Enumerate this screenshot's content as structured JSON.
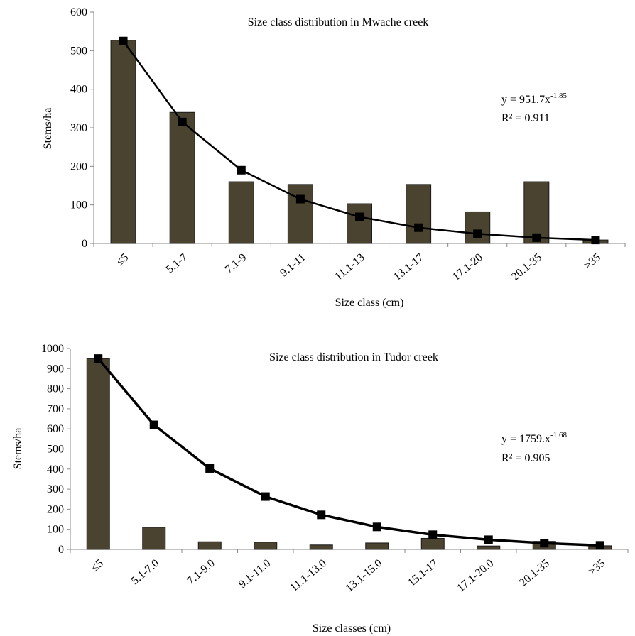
{
  "chart_data": [
    {
      "type": "bar",
      "title": "Size class distribution in Mwache creek",
      "xlabel": "Size class (cm)",
      "ylabel": "Stems/ha",
      "ylim": [
        0,
        600
      ],
      "yticks": [
        0,
        100,
        200,
        300,
        400,
        500,
        600
      ],
      "categories": [
        "≤5",
        "5.1-7",
        "7.1-9",
        "9.1-11",
        "11.1-13",
        "13.1-17",
        "17.1-20",
        "20.1-35",
        ">35"
      ],
      "bar_color": "#4a4330",
      "series": [
        {
          "type": "bar",
          "values": [
            527,
            340,
            160,
            153,
            103,
            153,
            82,
            160,
            9
          ]
        },
        {
          "type": "line",
          "values": [
            525,
            315,
            190,
            115,
            69,
            41,
            25,
            15,
            9
          ]
        }
      ],
      "annotations": {
        "equation_main": "y = 951.7x",
        "equation_exp": "-1.85",
        "r2": "R² = 0.911"
      },
      "grid": false,
      "legend": "none"
    },
    {
      "type": "bar",
      "title": "Size class distribution in Tudor creek",
      "xlabel": "Size classes (cm)",
      "ylabel": "Stems/ha",
      "ylim": [
        0,
        1000
      ],
      "yticks": [
        0,
        100,
        200,
        300,
        400,
        500,
        600,
        700,
        800,
        900,
        1000
      ],
      "categories": [
        "≤5",
        "5.1-7.0",
        "7.1-9.0",
        "9.1-11.0",
        "11.1-13.0",
        "13.1-15.0",
        "15.1-17",
        "17.1-20.0",
        "20.1-35",
        ">35"
      ],
      "bar_color": "#4a4330",
      "series": [
        {
          "type": "bar",
          "values": [
            950,
            110,
            38,
            36,
            22,
            32,
            55,
            17,
            40,
            18
          ]
        },
        {
          "type": "line",
          "values": [
            950,
            620,
            403,
            263,
            172,
            112,
            73,
            48,
            31,
            20
          ]
        }
      ],
      "annotations": {
        "equation_main": "y = 1759.x",
        "equation_exp": "-1.68",
        "r2": "R² = 0.905"
      },
      "grid": false,
      "legend": "none"
    }
  ]
}
